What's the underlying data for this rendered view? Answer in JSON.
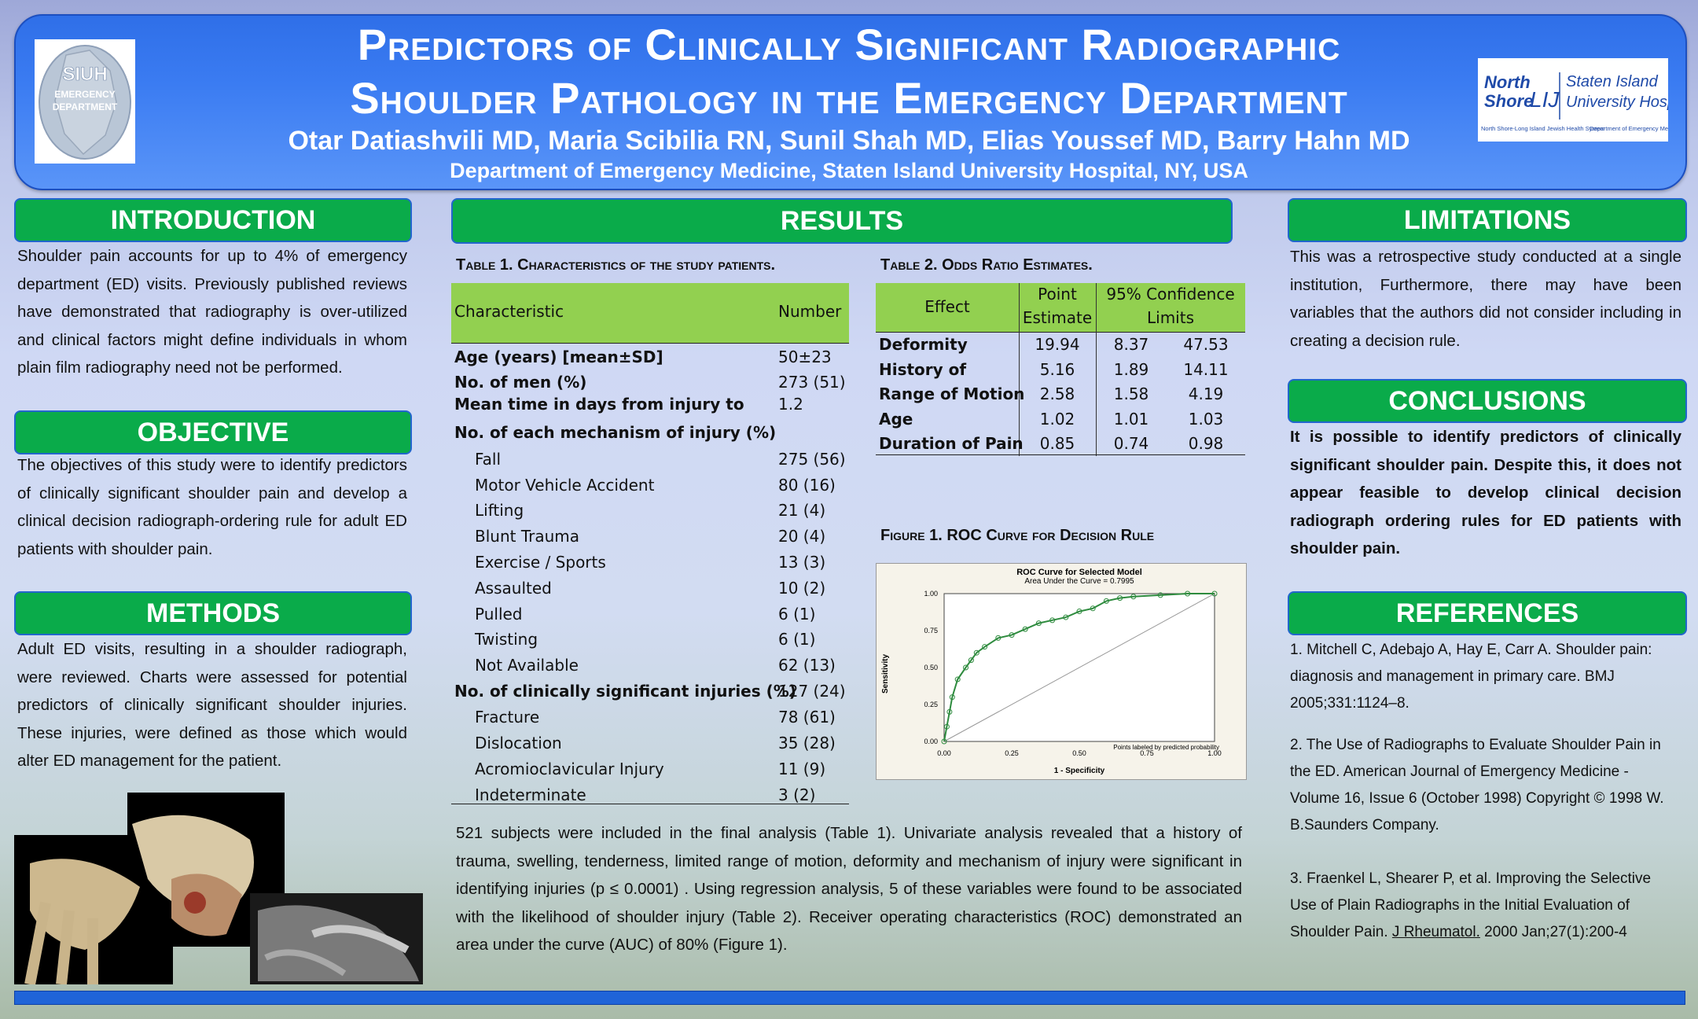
{
  "header": {
    "title_line1": "Predictors of Clinically Significant Radiographic",
    "title_line2": "Shoulder Pathology in the Emergency Department",
    "authors": "Otar Datiashvili MD, Maria Scibilia RN, Sunil Shah MD, Elias Youssef MD, Barry Hahn MD",
    "department": "Department of Emergency Medicine, Staten Island University Hospital, NY, USA",
    "logo_left": {
      "line1": "SIUH",
      "line2": "EMERGENCY",
      "line3": "DEPARTMENT"
    },
    "logo_right": {
      "brand1": "North",
      "brand2": "Shore",
      "brand3": "LIJ",
      "hospital1": "Staten Island",
      "hospital2": "University Hospital",
      "footer1": "North Shore-Long Island Jewish Health System",
      "footer2": "Department of Emergency Medicine"
    }
  },
  "introduction": {
    "heading": "INTRODUCTION",
    "text": "Shoulder pain accounts for up to 4% of emergency department (ED) visits. Previously published reviews have demonstrated that radiography is over-utilized and clinical factors might define individuals in whom plain film radiography need not be performed."
  },
  "objective": {
    "heading": "OBJECTIVE",
    "text": "The objectives of this study were to identify predictors of clinically significant shoulder pain and develop a clinical decision radiograph-ordering rule for adult ED patients with shoulder pain."
  },
  "methods": {
    "heading": "METHODS",
    "text": "Adult ED visits, resulting in a shoulder radiograph, were reviewed. Charts were assessed for potential predictors of clinically significant shoulder injuries. These injuries, were defined as those which would alter ED management for the patient."
  },
  "results": {
    "heading": "RESULTS",
    "table1": {
      "caption": "Table 1. Characteristics of the study patients.",
      "col1": "Characteristic",
      "col2": "Number",
      "rows": [
        {
          "label": "Age (years) [mean±SD]",
          "value": "50±23",
          "bold": true,
          "indent": false
        },
        {
          "label": "No. of men (%)",
          "value": "273 (51)",
          "bold": true,
          "indent": false
        },
        {
          "label": "Mean time in days from injury to",
          "value": "1.2",
          "bold": true,
          "indent": false
        },
        {
          "label": "No. of each mechanism of injury (%)",
          "value": "",
          "bold": true,
          "indent": false
        },
        {
          "label": "Fall",
          "value": "275 (56)",
          "bold": false,
          "indent": true
        },
        {
          "label": "Motor Vehicle Accident",
          "value": "80 (16)",
          "bold": false,
          "indent": true
        },
        {
          "label": "Lifting",
          "value": "21 (4)",
          "bold": false,
          "indent": true
        },
        {
          "label": "Blunt Trauma",
          "value": "20 (4)",
          "bold": false,
          "indent": true
        },
        {
          "label": "Exercise / Sports",
          "value": "13 (3)",
          "bold": false,
          "indent": true
        },
        {
          "label": "Assaulted",
          "value": "10 (2)",
          "bold": false,
          "indent": true
        },
        {
          "label": "Pulled",
          "value": "6 (1)",
          "bold": false,
          "indent": true
        },
        {
          "label": "Twisting",
          "value": "6 (1)",
          "bold": false,
          "indent": true
        },
        {
          "label": "Not Available",
          "value": "62 (13)",
          "bold": false,
          "indent": true
        },
        {
          "label": "No. of clinically significant injuries (%)",
          "value": "127 (24)",
          "bold": true,
          "indent": false
        },
        {
          "label": "Fracture",
          "value": "78 (61)",
          "bold": false,
          "indent": true
        },
        {
          "label": "Dislocation",
          "value": "35 (28)",
          "bold": false,
          "indent": true
        },
        {
          "label": "Acromioclavicular Injury",
          "value": "11 (9)",
          "bold": false,
          "indent": true
        },
        {
          "label": "Indeterminate",
          "value": "3 (2)",
          "bold": false,
          "indent": true
        }
      ]
    },
    "table2": {
      "caption": "Table 2. Odds Ratio Estimates.",
      "col_effect": "Effect",
      "col_point1": "Point",
      "col_point2": "Estimate",
      "col_ci1": "95% Confidence",
      "col_ci2": "Limits",
      "rows": [
        {
          "effect": "Deformity",
          "point": "19.94",
          "low": "8.37",
          "high": "47.53"
        },
        {
          "effect": "History of",
          "point": "5.16",
          "low": "1.89",
          "high": "14.11"
        },
        {
          "effect": "Range of Motion",
          "point": "2.58",
          "low": "1.58",
          "high": "4.19"
        },
        {
          "effect": "Age",
          "point": "1.02",
          "low": "1.01",
          "high": "1.03"
        },
        {
          "effect": "Duration of Pain",
          "point": "0.85",
          "low": "0.74",
          "high": "0.98"
        }
      ]
    },
    "figure1": {
      "caption": "Figure 1. ROC Curve for Decision Rule",
      "chart_title": "ROC Curve for Selected Model",
      "chart_subtitle": "Area Under the Curve = 0.7995",
      "xlabel": "1 - Specificity",
      "ylabel": "Sensitivity",
      "note": "Points labeled by predicted probability",
      "ticks": [
        "0.00",
        "0.25",
        "0.50",
        "0.75",
        "1.00"
      ]
    },
    "summary": "521 subjects were included in the final analysis (Table 1). Univariate analysis revealed that a history of trauma, swelling, tenderness, limited range of motion, deformity and mechanism of injury were significant in identifying injuries (p ≤ 0.0001) . Using regression analysis, 5 of these variables were found to be associated with the likelihood of shoulder injury (Table 2). Receiver operating characteristics (ROC) demonstrated an area under the curve (AUC) of 80% (Figure 1)."
  },
  "chart_data": {
    "type": "line",
    "title": "ROC Curve for Selected Model",
    "subtitle": "Area Under the Curve = 0.7995",
    "xlabel": "1 - Specificity",
    "ylabel": "Sensitivity",
    "xlim": [
      0,
      1
    ],
    "ylim": [
      0,
      1
    ],
    "x": [
      0,
      0.01,
      0.02,
      0.03,
      0.05,
      0.08,
      0.1,
      0.12,
      0.15,
      0.2,
      0.25,
      0.3,
      0.35,
      0.4,
      0.45,
      0.5,
      0.55,
      0.6,
      0.65,
      0.7,
      0.8,
      0.9,
      1.0
    ],
    "series": [
      {
        "values": [
          0,
          0.1,
          0.2,
          0.3,
          0.42,
          0.5,
          0.55,
          0.6,
          0.64,
          0.7,
          0.72,
          0.76,
          0.8,
          0.82,
          0.84,
          0.88,
          0.9,
          0.95,
          0.97,
          0.98,
          0.99,
          1.0,
          1.0
        ]
      }
    ],
    "reference_line": [
      [
        0,
        0
      ],
      [
        1,
        1
      ]
    ]
  },
  "limitations": {
    "heading": "LIMITATIONS",
    "text": "This was a retrospective study conducted at a single institution, Furthermore, there may have been variables that the authors did not consider including in creating a decision rule."
  },
  "conclusions": {
    "heading": "CONCLUSIONS",
    "text": "It is possible to identify predictors of clinically significant shoulder pain. Despite this, it does not appear feasible to develop clinical decision radiograph ordering rules for ED patients with shoulder pain."
  },
  "references": {
    "heading": "REFERENCES",
    "ref1": "1. Mitchell C, Adebajo A, Hay E, Carr A. Shoulder pain: diagnosis and management in primary care. BMJ 2005;331:1124–8.",
    "ref2": "2. The Use of Radiographs to Evaluate Shoulder Pain in the ED. American Journal of Emergency Medicine - Volume 16, Issue 6 (October 1998) Copyright © 1998 W. B.Saunders Company.",
    "ref3_pre": "3. Fraenkel L, Shearer P, et al. Improving the Selective Use of Plain Radiographs in the Initial Evaluation of Shoulder Pain. ",
    "ref3_link": "J Rheumatol.",
    "ref3_post": " 2000 Jan;27(1):200-4"
  },
  "colors": {
    "accent_green": "#0aab4a",
    "header_blue": "#2f6fe8",
    "table_green": "#92d050"
  }
}
